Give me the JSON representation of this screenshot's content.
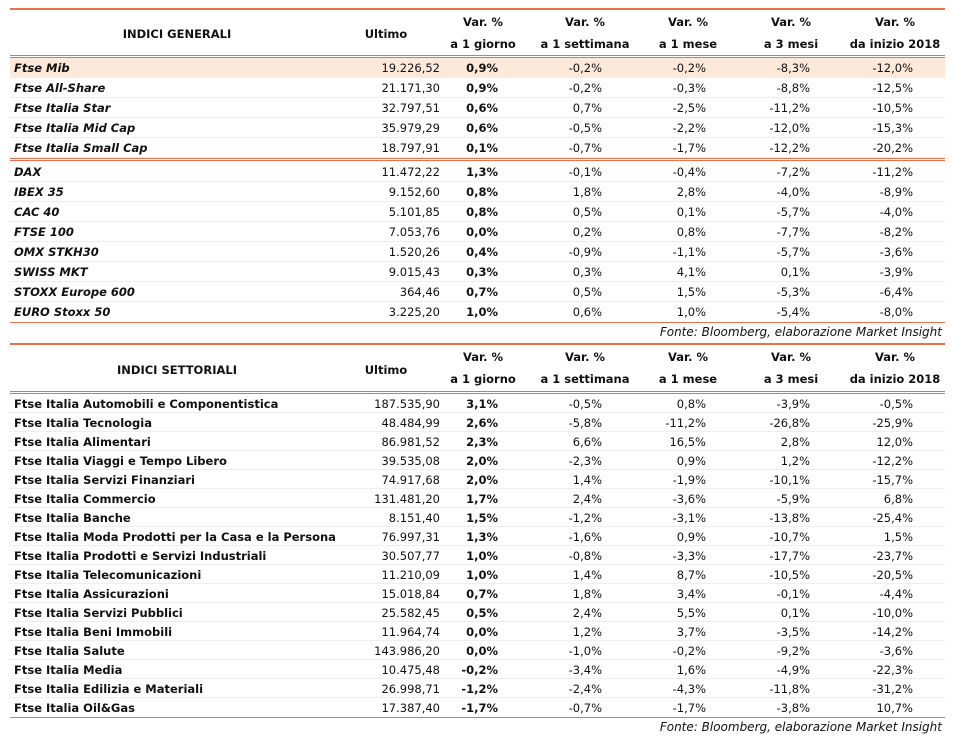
{
  "table1": {
    "headers": [
      [
        "INDICI GENERALI"
      ],
      [
        "Ultimo"
      ],
      [
        "Var. %",
        "a 1 giorno"
      ],
      [
        "Var. %",
        "a 1 settimana"
      ],
      [
        "Var. %",
        "a 1 mese"
      ],
      [
        "Var. %",
        "a 3 mesi"
      ],
      [
        "Var. %",
        "da inizio 2018"
      ]
    ],
    "sections": [
      [
        [
          "Ftse Mib",
          "19.226,52",
          "0,9%",
          "-0,2%",
          "-0,2%",
          "-8,3%",
          "-12,0%"
        ],
        [
          "Ftse All-Share",
          "21.171,30",
          "0,9%",
          "-0,2%",
          "-0,3%",
          "-8,8%",
          "-12,5%"
        ],
        [
          "Ftse Italia Star",
          "32.797,51",
          "0,6%",
          "0,7%",
          "-2,5%",
          "-11,2%",
          "-10,5%"
        ],
        [
          "Ftse Italia Mid Cap",
          "35.979,29",
          "0,6%",
          "-0,5%",
          "-2,2%",
          "-12,0%",
          "-15,3%"
        ],
        [
          "Ftse Italia Small Cap",
          "18.797,91",
          "0,1%",
          "-0,7%",
          "-1,7%",
          "-12,2%",
          "-20,2%"
        ]
      ],
      [
        [
          "DAX",
          "11.472,22",
          "1,3%",
          "-0,1%",
          "-0,4%",
          "-7,2%",
          "-11,2%"
        ],
        [
          "IBEX 35",
          "9.152,60",
          "0,8%",
          "1,8%",
          "2,8%",
          "-4,0%",
          "-8,9%"
        ],
        [
          "CAC 40",
          "5.101,85",
          "0,8%",
          "0,5%",
          "0,1%",
          "-5,7%",
          "-4,0%"
        ],
        [
          "FTSE 100",
          "7.053,76",
          "0,0%",
          "0,2%",
          "0,8%",
          "-7,7%",
          "-8,2%"
        ],
        [
          "OMX STKH30",
          "1.520,26",
          "0,4%",
          "-0,9%",
          "-1,1%",
          "-5,7%",
          "-3,6%"
        ],
        [
          "SWISS MKT",
          "9.015,43",
          "0,3%",
          "0,3%",
          "4,1%",
          "0,1%",
          "-3,9%"
        ],
        [
          "STOXX Europe 600",
          "364,46",
          "0,7%",
          "0,5%",
          "1,5%",
          "-5,3%",
          "-6,4%"
        ],
        [
          "EURO Stoxx 50",
          "3.225,20",
          "1,0%",
          "0,6%",
          "1,0%",
          "-5,4%",
          "-8,0%"
        ]
      ]
    ],
    "source": "Fonte: Bloomberg, elaborazione Market Insight"
  },
  "table2": {
    "headers": [
      [
        "INDICI SETTORIALI"
      ],
      [
        "Ultimo"
      ],
      [
        "Var. %",
        "a 1 giorno"
      ],
      [
        "Var. %",
        "a 1 settimana"
      ],
      [
        "Var. %",
        "a 1 mese"
      ],
      [
        "Var. %",
        "a 3 mesi"
      ],
      [
        "Var. %",
        "da inizio 2018"
      ]
    ],
    "sections": [
      [
        [
          "Ftse Italia Automobili e Componentistica",
          "187.535,90",
          "3,1%",
          "-0,5%",
          "0,8%",
          "-3,9%",
          "-0,5%"
        ],
        [
          "Ftse Italia Tecnologia",
          "48.484,99",
          "2,6%",
          "-5,8%",
          "-11,2%",
          "-26,8%",
          "-25,9%"
        ],
        [
          "Ftse Italia Alimentari",
          "86.981,52",
          "2,3%",
          "6,6%",
          "16,5%",
          "2,8%",
          "12,0%"
        ],
        [
          "Ftse Italia Viaggi e Tempo Libero",
          "39.535,08",
          "2,0%",
          "-2,3%",
          "0,9%",
          "1,2%",
          "-12,2%"
        ],
        [
          "Ftse Italia Servizi Finanziari",
          "74.917,68",
          "2,0%",
          "1,4%",
          "-1,9%",
          "-10,1%",
          "-15,7%"
        ],
        [
          "Ftse Italia Commercio",
          "131.481,20",
          "1,7%",
          "2,4%",
          "-3,6%",
          "-5,9%",
          "6,8%"
        ],
        [
          "Ftse Italia Banche",
          "8.151,40",
          "1,5%",
          "-1,2%",
          "-3,1%",
          "-13,8%",
          "-25,4%"
        ],
        [
          "Ftse Italia Moda Prodotti per la Casa e la Persona",
          "76.997,31",
          "1,3%",
          "-1,6%",
          "0,9%",
          "-10,7%",
          "1,5%"
        ],
        [
          "Ftse Italia Prodotti e Servizi Industriali",
          "30.507,77",
          "1,0%",
          "-0,8%",
          "-3,3%",
          "-17,7%",
          "-23,7%"
        ],
        [
          "Ftse Italia Telecomunicazioni",
          "11.210,09",
          "1,0%",
          "1,4%",
          "8,7%",
          "-10,5%",
          "-20,5%"
        ],
        [
          "Ftse Italia Assicurazioni",
          "15.018,84",
          "0,7%",
          "1,8%",
          "3,4%",
          "-0,1%",
          "-4,4%"
        ],
        [
          "Ftse Italia Servizi Pubblici",
          "25.582,45",
          "0,5%",
          "2,4%",
          "5,5%",
          "0,1%",
          "-10,0%"
        ],
        [
          "Ftse Italia Beni Immobili",
          "11.964,74",
          "0,0%",
          "1,2%",
          "3,7%",
          "-3,5%",
          "-14,2%"
        ],
        [
          "Ftse Italia Salute",
          "143.986,20",
          "0,0%",
          "-1,0%",
          "-0,2%",
          "-9,2%",
          "-3,6%"
        ],
        [
          "Ftse Italia Media",
          "10.475,48",
          "-0,2%",
          "-3,4%",
          "1,6%",
          "-4,9%",
          "-22,3%"
        ],
        [
          "Ftse Italia Edilizia e Materiali",
          "26.998,71",
          "-1,2%",
          "-2,4%",
          "-4,3%",
          "-11,8%",
          "-31,2%"
        ],
        [
          "Ftse Italia Oil&Gas",
          "17.387,40",
          "-1,7%",
          "-0,7%",
          "-1,7%",
          "-3,8%",
          "10,7%"
        ]
      ]
    ],
    "source": "Fonte: Bloomberg, elaborazione Market Insight"
  }
}
